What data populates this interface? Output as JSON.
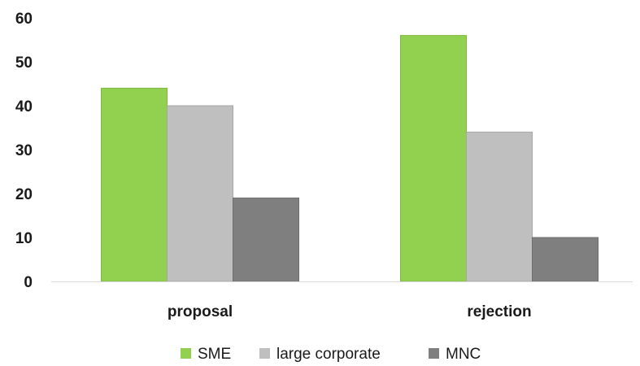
{
  "chart_data": {
    "type": "bar",
    "categories": [
      "proposal",
      "rejection"
    ],
    "series": [
      {
        "name": "SME",
        "values": [
          44,
          56
        ],
        "color": "#92d050",
        "stroke": "#7fb83f"
      },
      {
        "name": "large corporate",
        "values": [
          40,
          34
        ],
        "color": "#bfbfbf",
        "stroke": "#a6a6a6"
      },
      {
        "name": "MNC",
        "values": [
          19,
          10
        ],
        "color": "#7f7f7f",
        "stroke": "#6f6f6f"
      }
    ],
    "yticks": [
      0,
      10,
      20,
      30,
      40,
      50,
      60
    ],
    "ylim": [
      0,
      60
    ],
    "grid": false,
    "legend": "bottom-center"
  }
}
